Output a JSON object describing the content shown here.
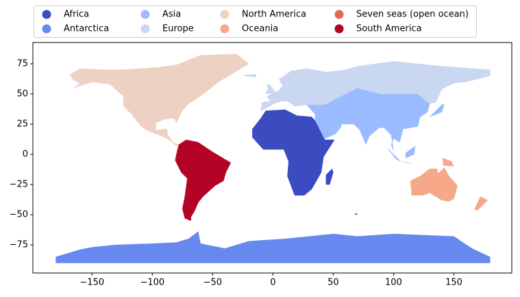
{
  "chart_data": {
    "type": "map",
    "series": [
      {
        "name": "Africa",
        "color": "#3b4cc0"
      },
      {
        "name": "Antarctica",
        "color": "#6788ee"
      },
      {
        "name": "Asia",
        "color": "#9abbff"
      },
      {
        "name": "Europe",
        "color": "#c9d7f0"
      },
      {
        "name": "North America",
        "color": "#edd1c2"
      },
      {
        "name": "Oceania",
        "color": "#f7a889"
      },
      {
        "name": "Seven seas (open ocean)",
        "color": "#e26952"
      },
      {
        "name": "South America",
        "color": "#b40426"
      }
    ],
    "legend": "upper center",
    "xlim": [
      -199,
      198
    ],
    "ylim": [
      -98.3,
      92.6
    ],
    "xticks": [
      {
        "value": -150,
        "label": "−150"
      },
      {
        "value": -100,
        "label": "−100"
      },
      {
        "value": -50,
        "label": "−50"
      },
      0,
      50,
      100,
      150
    ],
    "yticks": [
      {
        "value": -75,
        "label": "−75"
      },
      {
        "value": -50,
        "label": "−50"
      },
      {
        "value": -25,
        "label": "−25"
      },
      0,
      25,
      50,
      75
    ]
  }
}
